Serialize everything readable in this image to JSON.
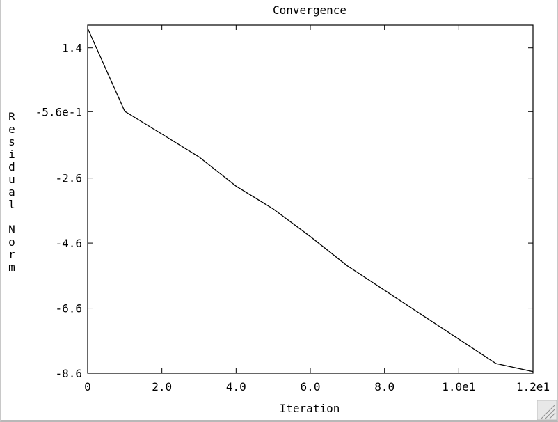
{
  "chart_data": {
    "type": "line",
    "title": "Convergence",
    "xlabel": "Iteration",
    "ylabel": "Residual Norm",
    "xlim": [
      0,
      12
    ],
    "ylim": [
      -8.6,
      2.1
    ],
    "x_ticks": [
      {
        "value": 0,
        "label": "0"
      },
      {
        "value": 2,
        "label": "2.0"
      },
      {
        "value": 4,
        "label": "4.0"
      },
      {
        "value": 6,
        "label": "6.0"
      },
      {
        "value": 8,
        "label": "8.0"
      },
      {
        "value": 10,
        "label": "1.0e1"
      },
      {
        "value": 12,
        "label": "1.2e1"
      }
    ],
    "y_ticks": [
      {
        "value": 1.4,
        "label": "1.4"
      },
      {
        "value": -0.56,
        "label": "-5.6e-1"
      },
      {
        "value": -2.6,
        "label": "-2.6"
      },
      {
        "value": -4.6,
        "label": "-4.6"
      },
      {
        "value": -6.6,
        "label": "-6.6"
      },
      {
        "value": -8.6,
        "label": "-8.6"
      }
    ],
    "grid": false,
    "series": [
      {
        "x": [
          0,
          1,
          2,
          3,
          4,
          5,
          6,
          7,
          8,
          9,
          10,
          11,
          12
        ],
        "y": [
          2.0,
          -0.55,
          -1.25,
          -1.95,
          -2.85,
          -3.55,
          -4.4,
          -5.3,
          -6.05,
          -6.8,
          -7.55,
          -8.3,
          -8.55
        ]
      }
    ]
  }
}
